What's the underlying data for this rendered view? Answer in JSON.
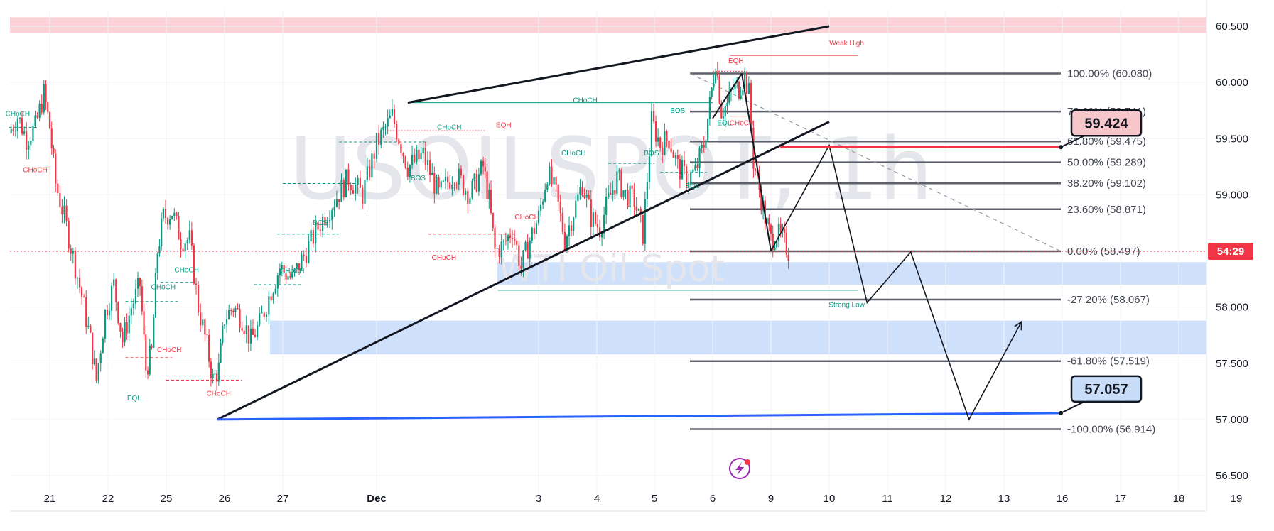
{
  "chart_data": {
    "type": "candlestick",
    "symbol": "USOILSPOT, 1h",
    "subtitle": "WTI Oil Spot",
    "timer": "54:29",
    "ylim": [
      56.35,
      60.6
    ],
    "yticks": [
      "60.500",
      "60.000",
      "59.500",
      "59.000",
      "58.500",
      "58.000",
      "57.500",
      "57.000",
      "56.500"
    ],
    "yticks_values": [
      60.5,
      60.0,
      59.5,
      59.0,
      58.5,
      58.0,
      57.5,
      57.0,
      56.5
    ],
    "xticks": [
      {
        "label": "21",
        "slot": 0
      },
      {
        "label": "22",
        "slot": 1
      },
      {
        "label": "25",
        "slot": 2
      },
      {
        "label": "26",
        "slot": 3
      },
      {
        "label": "27",
        "slot": 4
      },
      {
        "label": "Dec",
        "slot": 5
      },
      {
        "label": "3",
        "slot": 7
      },
      {
        "label": "4",
        "slot": 8
      },
      {
        "label": "5",
        "slot": 9
      },
      {
        "label": "6",
        "slot": 10
      },
      {
        "label": "9",
        "slot": 11
      },
      {
        "label": "10",
        "slot": 12
      },
      {
        "label": "11",
        "slot": 13
      },
      {
        "label": "12",
        "slot": 14
      },
      {
        "label": "13",
        "slot": 15
      },
      {
        "label": "16",
        "slot": 16
      },
      {
        "label": "17",
        "slot": 17
      },
      {
        "label": "18",
        "slot": 18
      },
      {
        "label": "19",
        "slot": 19
      }
    ],
    "price_path": [
      [
        -0.7,
        59.55
      ],
      [
        -0.55,
        59.7
      ],
      [
        -0.4,
        59.5
      ],
      [
        -0.25,
        59.6
      ],
      [
        -0.1,
        59.9
      ],
      [
        0.0,
        59.6
      ],
      [
        0.1,
        59.1
      ],
      [
        0.25,
        58.8
      ],
      [
        0.4,
        58.45
      ],
      [
        0.55,
        58.1
      ],
      [
        0.7,
        57.7
      ],
      [
        0.8,
        57.35
      ],
      [
        0.95,
        57.95
      ],
      [
        1.1,
        58.2
      ],
      [
        1.25,
        57.7
      ],
      [
        1.4,
        58.0
      ],
      [
        1.55,
        58.2
      ],
      [
        1.65,
        57.45
      ],
      [
        1.75,
        57.6
      ],
      [
        1.85,
        58.5
      ],
      [
        1.95,
        58.8
      ],
      [
        2.1,
        58.85
      ],
      [
        2.25,
        58.6
      ],
      [
        2.4,
        58.6
      ],
      [
        2.55,
        58.0
      ],
      [
        2.7,
        57.65
      ],
      [
        2.8,
        57.35
      ],
      [
        2.9,
        57.45
      ],
      [
        3.0,
        57.9
      ],
      [
        3.15,
        58.0
      ],
      [
        3.3,
        57.9
      ],
      [
        3.45,
        57.7
      ],
      [
        3.6,
        57.85
      ],
      [
        3.8,
        58.15
      ],
      [
        3.95,
        58.35
      ],
      [
        4.1,
        58.25
      ],
      [
        4.25,
        58.5
      ],
      [
        4.4,
        58.75
      ],
      [
        4.55,
        58.95
      ],
      [
        4.7,
        59.15
      ],
      [
        4.85,
        59.0
      ],
      [
        5.0,
        59.45
      ],
      [
        5.15,
        59.7
      ],
      [
        5.3,
        59.25
      ],
      [
        5.45,
        59.35
      ],
      [
        5.6,
        59.0
      ],
      [
        5.75,
        59.2
      ],
      [
        5.9,
        59.0
      ],
      [
        6.05,
        59.25
      ],
      [
        6.15,
        58.95
      ],
      [
        6.25,
        58.5
      ],
      [
        6.4,
        58.55
      ],
      [
        6.55,
        58.7
      ],
      [
        6.7,
        58.35
      ],
      [
        6.85,
        58.6
      ],
      [
        7.0,
        58.8
      ],
      [
        7.15,
        59.2
      ],
      [
        7.3,
        59.0
      ],
      [
        7.45,
        58.6
      ],
      [
        7.6,
        58.85
      ],
      [
        7.75,
        59.1
      ],
      [
        7.9,
        58.8
      ],
      [
        8.05,
        58.7
      ],
      [
        8.2,
        58.95
      ],
      [
        8.35,
        59.15
      ],
      [
        8.5,
        59.0
      ],
      [
        8.65,
        58.95
      ],
      [
        8.8,
        58.65
      ],
      [
        8.95,
        59.65
      ],
      [
        9.1,
        59.45
      ],
      [
        9.25,
        59.5
      ],
      [
        9.4,
        59.25
      ],
      [
        9.55,
        59.15
      ],
      [
        9.7,
        59.2
      ],
      [
        9.85,
        59.45
      ],
      [
        9.95,
        59.8
      ],
      [
        10.05,
        60.2
      ],
      [
        10.15,
        59.75
      ],
      [
        10.25,
        59.8
      ],
      [
        10.35,
        59.95
      ],
      [
        10.45,
        59.95
      ],
      [
        10.55,
        60.05
      ],
      [
        10.62,
        59.9
      ],
      [
        10.7,
        59.3
      ],
      [
        10.8,
        59.05
      ],
      [
        10.9,
        58.8
      ],
      [
        11.0,
        58.6
      ],
      [
        11.1,
        58.65
      ],
      [
        11.2,
        58.6
      ],
      [
        11.3,
        58.5
      ]
    ],
    "fibonacci": [
      {
        "label": "100.00% (60.080)",
        "value": 60.08
      },
      {
        "label": "78.60% (59.741)",
        "value": 59.741
      },
      {
        "label": "61.80% (59.475)",
        "value": 59.475
      },
      {
        "label": "50.00% (59.289)",
        "value": 59.289
      },
      {
        "label": "38.20% (59.102)",
        "value": 59.102
      },
      {
        "label": "23.60% (58.871)",
        "value": 58.871
      },
      {
        "label": "0.00% (58.497)",
        "value": 58.497
      },
      {
        "label": "-27.20% (58.067)",
        "value": 58.067
      },
      {
        "label": "-61.80% (57.519)",
        "value": 57.519
      },
      {
        "label": "-100.00% (56.914)",
        "value": 56.914
      }
    ],
    "callouts": [
      {
        "label": "59.424",
        "value": 59.424,
        "color": "#f7c6cb"
      },
      {
        "label": "57.057",
        "value": 57.057,
        "color": "#c9dcf8"
      }
    ],
    "zones": [
      {
        "from": 60.44,
        "to": 60.58,
        "color": "#fbd3d6"
      },
      {
        "from": 58.2,
        "to": 58.4,
        "color": "#cfe0fb"
      },
      {
        "from": 57.58,
        "to": 57.88,
        "color": "#cfe0fb"
      }
    ],
    "current_price": 58.497,
    "projection": [
      [
        11.0,
        58.5
      ],
      [
        12.0,
        59.44
      ],
      [
        12.65,
        58.04
      ],
      [
        13.4,
        58.49
      ],
      [
        14.4,
        57.0
      ],
      [
        15.3,
        57.87
      ]
    ],
    "structure_labels": [
      {
        "text": "Weak High",
        "slot": 12.3,
        "value": 60.33,
        "color": "#f23645"
      },
      {
        "text": "EQH",
        "slot": 10.4,
        "value": 60.17,
        "color": "#f23645"
      },
      {
        "text": "CHoCH",
        "slot": 7.8,
        "value": 59.82,
        "color": "#089981",
        "size": 13
      },
      {
        "text": "BOS",
        "slot": 9.4,
        "value": 59.73,
        "color": "#089981"
      },
      {
        "text": "EQL",
        "slot": 10.2,
        "value": 59.62,
        "color": "#089981"
      },
      {
        "text": "CHoCH",
        "slot": 10.5,
        "value": 59.62,
        "color": "#f23645"
      },
      {
        "text": "CHoCH",
        "slot": -0.55,
        "value": 59.7,
        "color": "#089981"
      },
      {
        "text": "CHoCH",
        "slot": -0.25,
        "value": 59.2,
        "color": "#f23645"
      },
      {
        "text": "CHoCH",
        "slot": 5.7,
        "value": 59.58,
        "color": "#089981"
      },
      {
        "text": "EQH",
        "slot": 6.4,
        "value": 59.6,
        "color": "#f23645"
      },
      {
        "text": "BOS",
        "slot": 5.4,
        "value": 59.13,
        "color": "#089981"
      },
      {
        "text": "CHoCH",
        "slot": 7.6,
        "value": 59.35,
        "color": "#089981"
      },
      {
        "text": "BOS",
        "slot": 8.95,
        "value": 59.35,
        "color": "#089981"
      },
      {
        "text": "EQL",
        "slot": 9.65,
        "value": 59.06,
        "color": "#089981"
      },
      {
        "text": "CHoCH",
        "slot": 6.8,
        "value": 58.78,
        "color": "#f23645"
      },
      {
        "text": "BOS",
        "slot": 4.4,
        "value": 58.73,
        "color": "#089981"
      },
      {
        "text": "CHoCH",
        "slot": 5.65,
        "value": 58.42,
        "color": "#f23645"
      },
      {
        "text": "CHoCH",
        "slot": 4.1,
        "value": 58.3,
        "color": "#089981"
      },
      {
        "text": "CHoCH",
        "slot": 1.95,
        "value": 58.16,
        "color": "#089981"
      },
      {
        "text": "CHoCH",
        "slot": 2.35,
        "value": 58.31,
        "color": "#089981"
      },
      {
        "text": "CHoCH",
        "slot": 2.05,
        "value": 57.6,
        "color": "#f23645"
      },
      {
        "text": "CHoCH",
        "slot": 2.9,
        "value": 57.21,
        "color": "#f23645"
      },
      {
        "text": "EQL",
        "slot": 1.45,
        "value": 57.17,
        "color": "#089981"
      },
      {
        "text": "Strong Low",
        "slot": 12.3,
        "value": 58.0,
        "color": "#089981"
      }
    ]
  }
}
